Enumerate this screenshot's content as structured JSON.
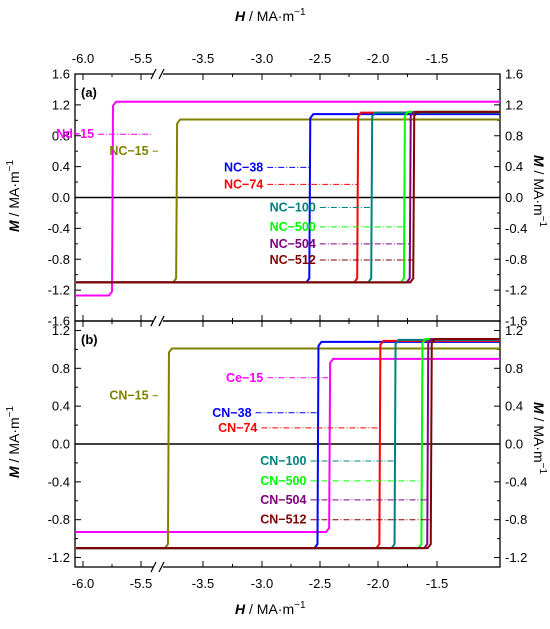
{
  "figure": {
    "x_axis_title_italic": "H",
    "x_axis_title_rest": " / MA·m",
    "x_axis_title_exp": "−1",
    "y_axis_title_italic": "M",
    "y_axis_title_rest": " / MA·m",
    "y_axis_title_exp": "−1",
    "x_tick_labels": [
      "-6.0",
      "-5.5",
      "-3.5",
      "-3.0",
      "-2.5",
      "-2.0",
      "-1.5"
    ],
    "axis_break_mark": "//"
  },
  "chart_data": [
    {
      "type": "line",
      "panel_label": "(a)",
      "xlabel": "H / MA·m⁻¹",
      "ylabel": "M / MA·m⁻¹",
      "xlim": [
        -6.0,
        -1.3
      ],
      "x_axis_break": [
        -5.35,
        -3.85
      ],
      "ylim": [
        -1.6,
        1.6
      ],
      "y_ticks": [
        -1.6,
        -1.2,
        -0.8,
        -0.4,
        0.0,
        0.4,
        0.8,
        1.2,
        1.6
      ],
      "y_tick_labels": [
        "-1.6",
        "-1.2",
        "-0.8",
        "-0.4",
        "0.0",
        "0.4",
        "0.8",
        "1.2",
        "1.6"
      ],
      "series": [
        {
          "name": "Nd−15",
          "color": "#ff00ff",
          "Hc": -5.75,
          "M_low": -1.27,
          "M_high": 1.24,
          "legend_y": 0.82,
          "legend_line_x": [
            -5.87,
            -5.4
          ]
        },
        {
          "name": "NC−15",
          "color": "#808000",
          "Hc": -3.73,
          "M_low": -1.1,
          "M_high": 1.01,
          "legend_y": 0.6,
          "legend_line_x": [
            -5.05,
            -5.4
          ]
        },
        {
          "name": "NC−38",
          "color": "#0000ff",
          "Hc": -2.59,
          "M_low": -1.1,
          "M_high": 1.08,
          "legend_y": 0.39,
          "legend_line_x": [
            -2.59,
            -2.95
          ]
        },
        {
          "name": "NC−74",
          "color": "#ff0000",
          "Hc": -2.18,
          "M_low": -1.1,
          "M_high": 1.1,
          "legend_y": 0.17,
          "legend_line_x": [
            -2.18,
            -2.95
          ]
        },
        {
          "name": "NC−100",
          "color": "#008080",
          "Hc": -2.06,
          "M_low": -1.1,
          "M_high": 1.1,
          "legend_y": -0.13,
          "legend_line_x": [
            -2.06,
            -2.5
          ]
        },
        {
          "name": "NC−500",
          "color": "#00ff00",
          "Hc": -1.78,
          "M_low": -1.1,
          "M_high": 1.11,
          "legend_y": -0.38,
          "legend_line_x": [
            -1.78,
            -2.5
          ]
        },
        {
          "name": "NC−504",
          "color": "#800080",
          "Hc": -1.73,
          "M_low": -1.1,
          "M_high": 1.11,
          "legend_y": -0.6,
          "legend_line_x": [
            -1.73,
            -2.5
          ]
        },
        {
          "name": "NC−512",
          "color": "#800000",
          "Hc": -1.7,
          "M_low": -1.1,
          "M_high": 1.11,
          "legend_y": -0.81,
          "legend_line_x": [
            -1.7,
            -2.5
          ]
        }
      ]
    },
    {
      "type": "line",
      "panel_label": "(b)",
      "xlabel": "H / MA·m⁻¹",
      "ylabel": "M / MA·m⁻¹",
      "xlim": [
        -6.0,
        -1.3
      ],
      "x_axis_break": [
        -5.35,
        -3.85
      ],
      "ylim": [
        -1.3,
        1.3
      ],
      "y_ticks": [
        -1.2,
        -0.8,
        -0.4,
        0.0,
        0.4,
        0.8,
        1.2
      ],
      "y_tick_labels": [
        "-1.2",
        "-0.8",
        "-0.4",
        "0.0",
        "0.4",
        "0.8",
        "1.2"
      ],
      "series": [
        {
          "name": "Ce−15",
          "color": "#ff00ff",
          "Hc": -2.42,
          "M_low": -0.93,
          "M_high": 0.9,
          "legend_y": 0.7,
          "legend_line_x": [
            -2.42,
            -2.95
          ]
        },
        {
          "name": "CN−15",
          "color": "#808000",
          "Hc": -3.8,
          "M_low": -1.1,
          "M_high": 1.01,
          "legend_y": 0.51,
          "legend_line_x": [
            -5.08,
            -5.4
          ]
        },
        {
          "name": "CN−38",
          "color": "#0000ff",
          "Hc": -2.52,
          "M_low": -1.1,
          "M_high": 1.08,
          "legend_y": 0.33,
          "legend_line_x": [
            -2.52,
            -3.05
          ]
        },
        {
          "name": "CN−74",
          "color": "#ff0000",
          "Hc": -1.99,
          "M_low": -1.1,
          "M_high": 1.09,
          "legend_y": 0.17,
          "legend_line_x": [
            -1.99,
            -3.0
          ]
        },
        {
          "name": "CN−100",
          "color": "#008080",
          "Hc": -1.86,
          "M_low": -1.1,
          "M_high": 1.1,
          "legend_y": -0.18,
          "legend_line_x": [
            -1.86,
            -2.58
          ]
        },
        {
          "name": "CN−500",
          "color": "#00ff00",
          "Hc": -1.63,
          "M_low": -1.1,
          "M_high": 1.11,
          "legend_y": -0.39,
          "legend_line_x": [
            -1.63,
            -2.58
          ]
        },
        {
          "name": "CN−504",
          "color": "#800080",
          "Hc": -1.58,
          "M_low": -1.1,
          "M_high": 1.11,
          "legend_y": -0.59,
          "legend_line_x": [
            -1.58,
            -2.58
          ]
        },
        {
          "name": "CN−512",
          "color": "#800000",
          "Hc": -1.55,
          "M_low": -1.1,
          "M_high": 1.11,
          "legend_y": -0.8,
          "legend_line_x": [
            -1.55,
            -2.58
          ]
        }
      ]
    }
  ]
}
